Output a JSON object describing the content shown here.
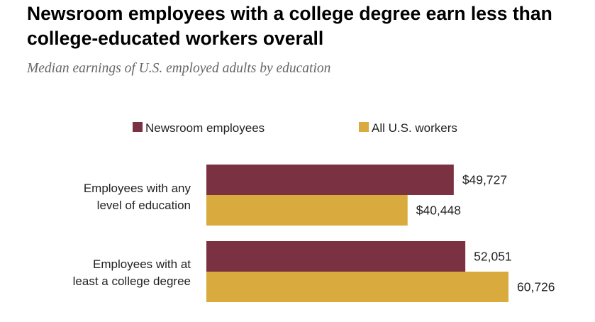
{
  "title": "Newsroom employees with a college degree earn less than college-educated workers overall",
  "subtitle": "Median earnings of U.S. employed adults by education",
  "chart_data": {
    "type": "bar",
    "orientation": "horizontal",
    "categories": [
      "Employees with any level of education",
      "Employees with at least a college degree"
    ],
    "category_label_lines": [
      [
        "Employees with any",
        "level of education"
      ],
      [
        "Employees with at",
        "least a college degree"
      ]
    ],
    "series": [
      {
        "name": "Newsroom employees",
        "color": "#7A3142",
        "values": [
          49727,
          52051
        ],
        "labels": [
          "$49,727",
          "52,051"
        ]
      },
      {
        "name": "All U.S. workers",
        "color": "#D9AA3D",
        "values": [
          40448,
          60726
        ],
        "labels": [
          "$40,448",
          "60,726"
        ]
      }
    ],
    "legend_position": "top",
    "grid": false,
    "xlim": [
      0,
      60726
    ]
  }
}
